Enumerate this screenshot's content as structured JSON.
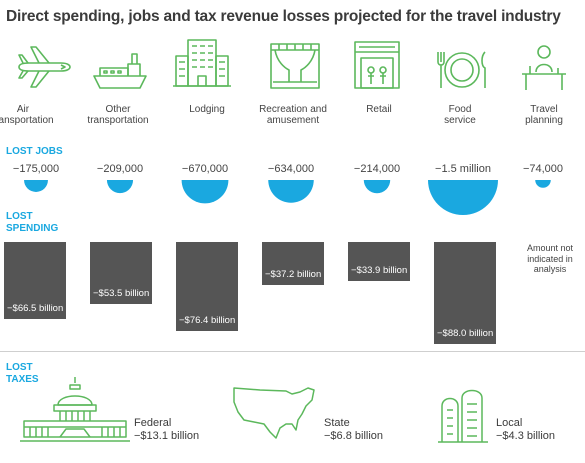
{
  "title": "Direct spending, jobs and tax revenue losses projected for the travel industry",
  "colors": {
    "accent": "#1aa8e0",
    "icon": "#5cb85c",
    "bar": "#555555"
  },
  "sections": {
    "jobs": [
      "LOST JOBS"
    ],
    "spending": [
      "LOST",
      "SPENDING"
    ],
    "taxes": [
      "LOST",
      "TAXES"
    ]
  },
  "categories": [
    {
      "label": [
        "Air",
        "transportation"
      ],
      "icon": "airplane-icon"
    },
    {
      "label": [
        "Other",
        "transportation"
      ],
      "icon": "ship-icon"
    },
    {
      "label": [
        "Lodging"
      ],
      "icon": "hotel-icon"
    },
    {
      "label": [
        "Recreation and",
        "amusement"
      ],
      "icon": "theater-icon"
    },
    {
      "label": [
        "Retail"
      ],
      "icon": "store-icon"
    },
    {
      "label": [
        "Food",
        "service"
      ],
      "icon": "plate-icon"
    },
    {
      "label": [
        "Travel",
        "planning"
      ],
      "icon": "desk-icon"
    }
  ],
  "travel_planning_note": [
    "Amount not",
    "indicated in",
    "analysis"
  ],
  "chart_data": {
    "type": "bar",
    "title": "Direct spending, jobs and tax revenue losses projected for the travel industry",
    "categories": [
      "Air transportation",
      "Other transportation",
      "Lodging",
      "Recreation and amusement",
      "Retail",
      "Food service",
      "Travel planning"
    ],
    "series": [
      {
        "name": "LOST JOBS",
        "values": [
          -175000,
          -209000,
          -670000,
          -634000,
          -214000,
          -1500000,
          -74000
        ],
        "labels": [
          "−175,000",
          "−209,000",
          "−670,000",
          "−634,000",
          "−214,000",
          "−1.5 million",
          "−74,000"
        ]
      },
      {
        "name": "LOST SPENDING",
        "values": [
          -66.5,
          -53.5,
          -76.4,
          -37.2,
          -33.9,
          -88.0,
          null
        ],
        "labels": [
          "−$66.5 billion",
          "−$53.5  billion",
          "−$76.4 billion",
          "−$37.2 billion",
          "−$33.9 billion",
          "−$88.0 billion",
          ""
        ]
      }
    ],
    "taxes": [
      {
        "label": "Federal",
        "value": -13.1,
        "text": "−$13.1 billion",
        "icon": "capitol-icon"
      },
      {
        "label": "State",
        "value": -6.8,
        "text": "−$6.8 billion",
        "icon": "usa-map-icon"
      },
      {
        "label": "Local",
        "value": -4.3,
        "text": "−$4.3 billion",
        "icon": "city-buildings-icon"
      }
    ]
  }
}
